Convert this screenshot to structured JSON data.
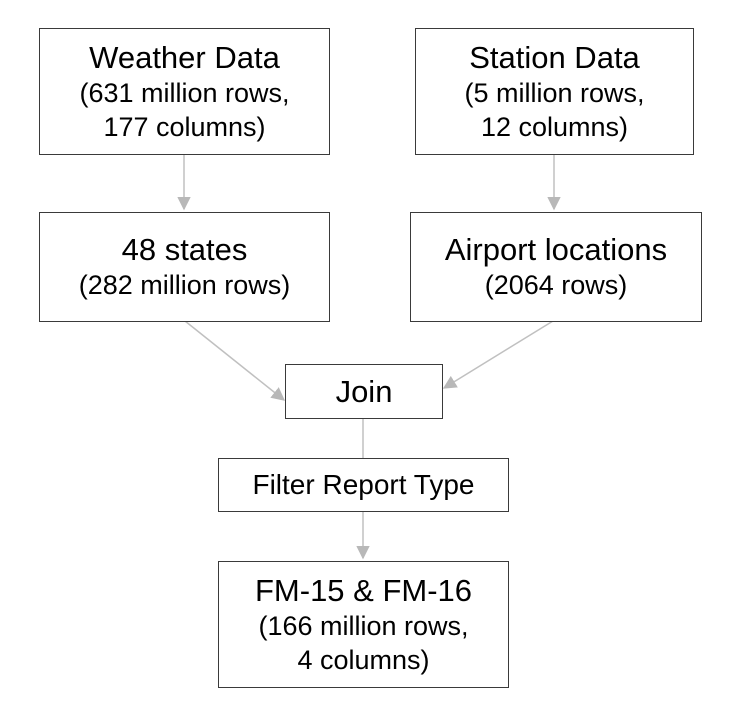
{
  "nodes": {
    "weather": {
      "title": "Weather Data",
      "line1": "(631 million rows,",
      "line2": "177 columns)"
    },
    "station": {
      "title": "Station Data",
      "line1": "(5 million rows,",
      "line2": "12 columns)"
    },
    "states": {
      "title": "48 states",
      "line1": "(282 million rows)"
    },
    "airport": {
      "title": "Airport locations",
      "line1": "(2064 rows)"
    },
    "join": {
      "title": "Join"
    },
    "filter": {
      "title": "Filter Report Type"
    },
    "fm": {
      "title": "FM-15 & FM-16",
      "line1": "(166 million rows,",
      "line2": "4 columns)"
    }
  }
}
